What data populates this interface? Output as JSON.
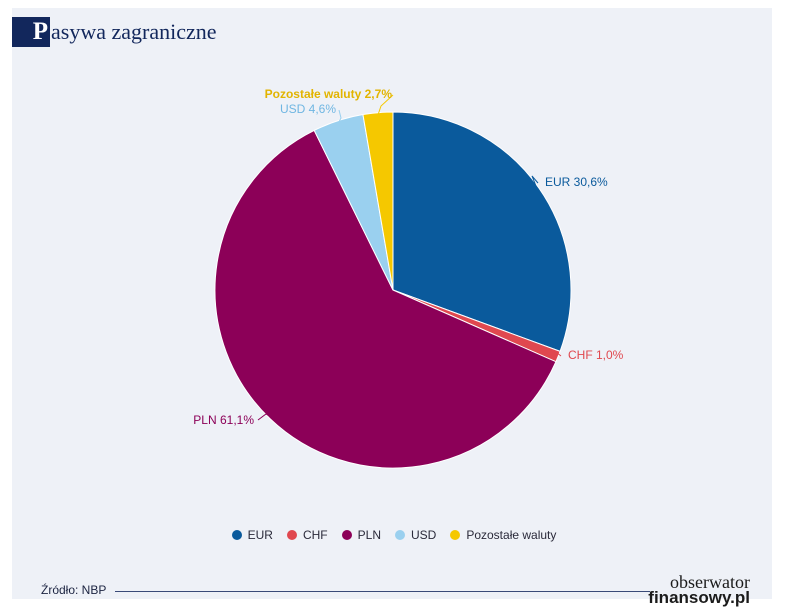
{
  "header": {
    "title_initial": "P",
    "title_rest": "asywa zagraniczne"
  },
  "chart_data": {
    "type": "pie",
    "title": "Pasywa zagraniczne",
    "slices": [
      {
        "name": "EUR",
        "value": 30.6,
        "label": "EUR 30,6%",
        "color": "#0a5a9c"
      },
      {
        "name": "CHF",
        "value": 1.0,
        "label": "CHF 1,0%",
        "color": "#e0484f"
      },
      {
        "name": "PLN",
        "value": 61.1,
        "label": "PLN 61,1%",
        "color": "#8c0058"
      },
      {
        "name": "USD",
        "value": 4.6,
        "label": "USD 4,6%",
        "color": "#9ad0ef"
      },
      {
        "name": "Pozostałe waluty",
        "value": 2.7,
        "label": "Pozostałe waluty 2,7%",
        "color": "#f5c800"
      }
    ],
    "legend_position": "bottom"
  },
  "legend": [
    {
      "name": "EUR",
      "color": "#0a5a9c"
    },
    {
      "name": "CHF",
      "color": "#e0484f"
    },
    {
      "name": "PLN",
      "color": "#8c0058"
    },
    {
      "name": "USD",
      "color": "#9ad0ef"
    },
    {
      "name": "Pozostałe waluty",
      "color": "#f5c800"
    }
  ],
  "footer": {
    "source": "Źródło: NBP",
    "logo_top": "obserwator",
    "logo_bottom": "finansowy.pl"
  }
}
